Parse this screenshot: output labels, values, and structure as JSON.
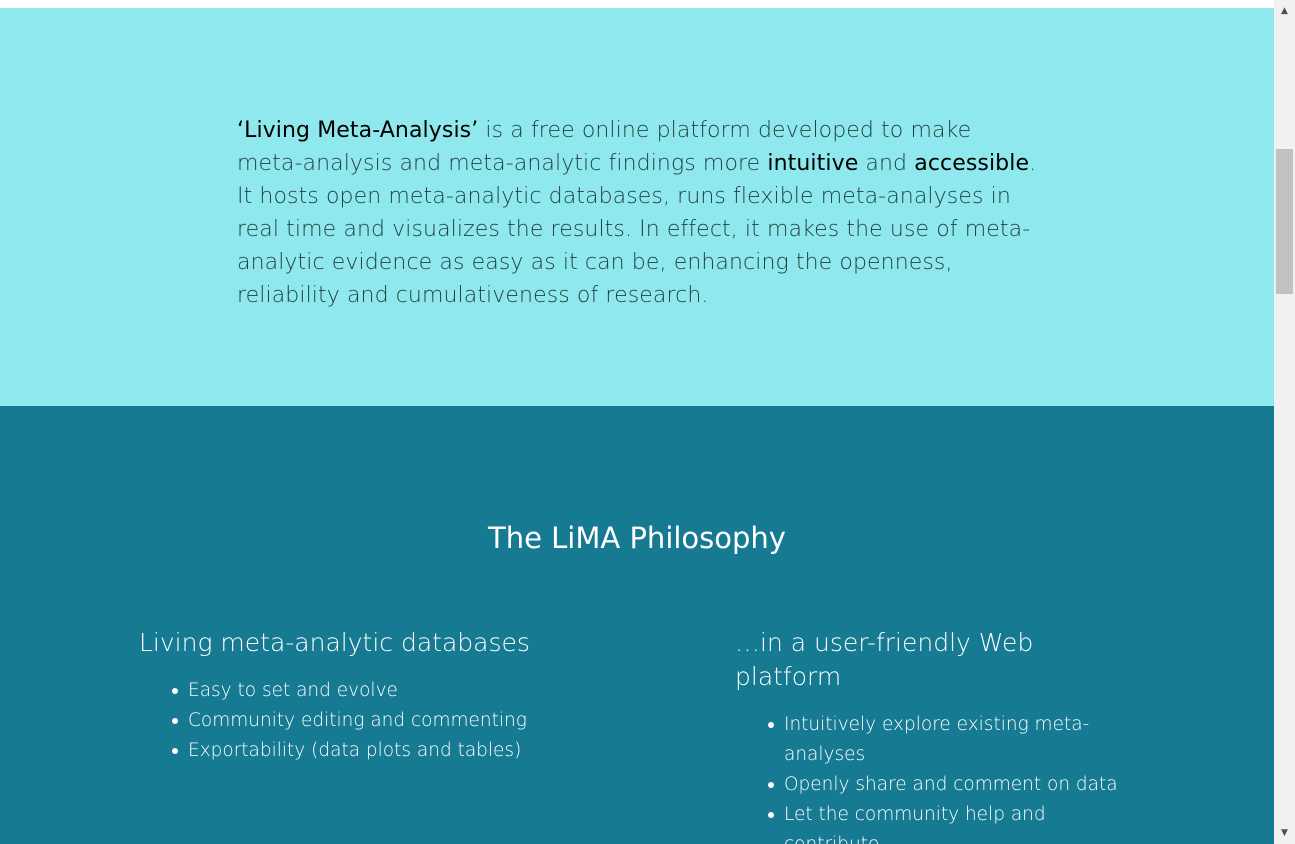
{
  "intro": {
    "highlight_name": "‘Living Meta-Analysis’",
    "text_1": " is a free online platform developed to make meta-analysis and meta-analytic findings more ",
    "highlight_intuitive": "intuitive",
    "text_and": " and ",
    "highlight_accessible": "accessible",
    "text_2": ". It hosts open meta-analytic databases, runs flexible meta-analyses in real time and visualizes the results. In effect, it makes the use of meta-analytic evidence as easy as it can be, enhancing the openness, reliability and cumulativeness of research."
  },
  "philosophy": {
    "title": "The LiMA Philosophy",
    "left": {
      "heading": "Living meta-analytic databases",
      "items": [
        "Easy to set and evolve",
        "Community editing and commenting",
        "Exportability (data plots and tables)"
      ]
    },
    "right": {
      "heading": "…in a user-friendly Web platform",
      "items": [
        "Intuitively explore existing meta-analyses",
        "Openly share and comment on data",
        "Let the community help and contribute"
      ]
    }
  },
  "scrollbar": {
    "up_icon": "▲",
    "down_icon": "▼"
  },
  "colors": {
    "intro_bg": "#8fe8ed",
    "philosophy_bg": "#177a93"
  }
}
